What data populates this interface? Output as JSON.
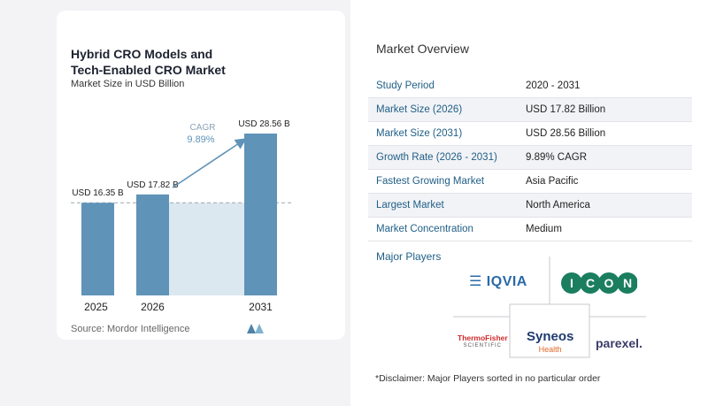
{
  "left": {
    "title_line1": "Hybrid CRO Models and",
    "title_line2": "Tech-Enabled CRO Market",
    "subtitle": "Market Size in USD Billion",
    "source": "Source: Mordor Intelligence",
    "cagr_label": "CAGR",
    "cagr_value": "9.89%"
  },
  "chart_data": {
    "type": "bar",
    "categories": [
      "2025",
      "2026",
      "2031"
    ],
    "values": [
      16.35,
      17.82,
      28.56
    ],
    "data_labels": [
      "USD 16.35 B",
      "USD 17.82 B",
      "USD 28.56 B"
    ],
    "title": "Hybrid CRO Models and Tech-Enabled CRO Market",
    "subtitle": "Market Size in USD Billion",
    "ylim": [
      0,
      28.56
    ],
    "grid": false,
    "annotation": "CAGR 9.89%",
    "colors": {
      "bar": "#5f93b8",
      "bar_top": "#4f82a8",
      "shade": "#dce8f0",
      "arrow": "#5f93b8",
      "dashed": "#9aa7b2"
    }
  },
  "overview": {
    "title": "Market Overview",
    "rows": [
      {
        "key": "Study Period",
        "value": "2020 - 2031"
      },
      {
        "key": "Market Size (2026)",
        "value": "USD 17.82 Billion"
      },
      {
        "key": "Market Size (2031)",
        "value": "USD 28.56 Billion"
      },
      {
        "key": "Growth Rate (2026 - 2031)",
        "value": "9.89% CAGR"
      },
      {
        "key": "Fastest Growing Market",
        "value": "Asia Pacific"
      },
      {
        "key": "Largest Market",
        "value": "North America"
      },
      {
        "key": "Market Concentration",
        "value": "Medium"
      }
    ],
    "players_title": "Major Players",
    "players": [
      "IQVIA",
      "ICON",
      "ThermoFisher SCIENTIFIC",
      "Syneos Health",
      "parexel."
    ],
    "disclaimer": "*Disclaimer: Major Players sorted in no particular order"
  }
}
